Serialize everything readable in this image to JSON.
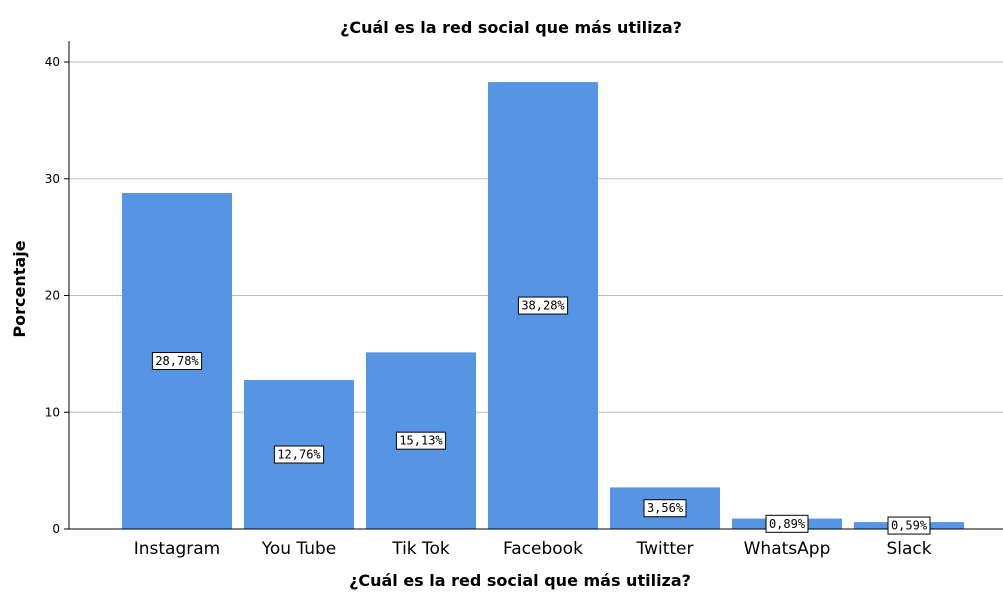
{
  "chart_data": {
    "type": "bar",
    "title": "¿Cuál es la red social que más utiliza?",
    "xlabel": "¿Cuál es la red social que más utiliza?",
    "ylabel": "Porcentaje",
    "categories": [
      "Instagram",
      "You Tube",
      "Tik Tok",
      "Facebook",
      "Twitter",
      "WhatsApp",
      "Slack"
    ],
    "values": [
      28.78,
      12.76,
      15.13,
      38.28,
      3.56,
      0.89,
      0.59
    ],
    "data_labels": [
      "28,78%",
      "12,76%",
      "15,13%",
      "38,28%",
      "3,56%",
      "0,89%",
      "0,59%"
    ],
    "yticks": [
      0,
      10,
      20,
      30,
      40
    ],
    "ylim": [
      0,
      41.8
    ],
    "grid": true,
    "legend": "none",
    "bar_color": "#5595e4"
  }
}
